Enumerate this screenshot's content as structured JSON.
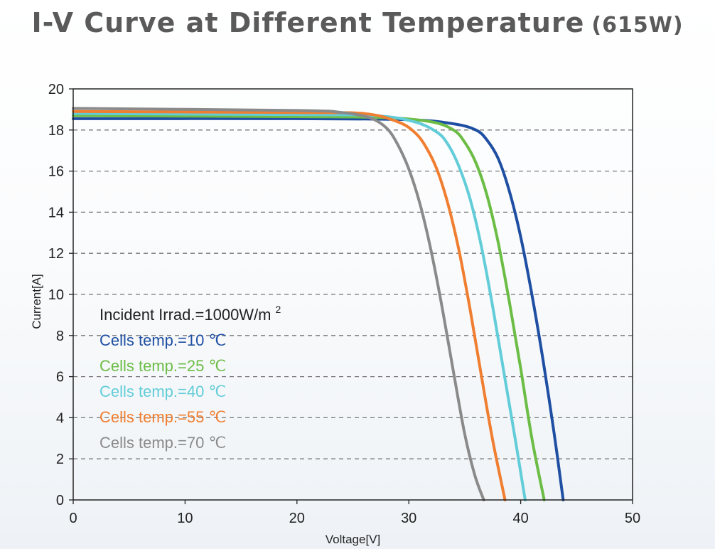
{
  "chart_data": {
    "type": "line",
    "title": "I-V Curve at Different Temperature",
    "title_suffix": "(615W)",
    "xlabel": "Voltage[V]",
    "ylabel": "Current[A]",
    "xlim": [
      0,
      50
    ],
    "ylim": [
      0,
      20
    ],
    "xticks": [
      "0",
      "10",
      "20",
      "30",
      "40",
      "50"
    ],
    "yticks": [
      "0",
      "2",
      "4",
      "6",
      "8",
      "10",
      "12",
      "14",
      "16",
      "18",
      "20"
    ],
    "grid": "horizontal dashed",
    "annotations": {
      "irradiance": "Incident Irrad.=1000W/m",
      "irradiance_sup": "2"
    },
    "series": [
      {
        "name": "Cells temp.=10 ℃",
        "color": "#1f4fa3",
        "x": [
          0,
          20,
          30,
          34,
          36,
          37,
          38,
          39,
          40,
          41,
          42,
          43,
          43.8
        ],
        "y": [
          18.55,
          18.55,
          18.5,
          18.3,
          18.0,
          17.5,
          16.6,
          15.0,
          12.8,
          10.0,
          6.8,
          3.2,
          0
        ]
      },
      {
        "name": "Cells temp.=25 ℃",
        "color": "#6cbd45",
        "x": [
          0,
          20,
          28,
          32,
          34,
          35,
          36,
          37,
          38,
          39,
          40,
          41,
          42.1
        ],
        "y": [
          18.7,
          18.65,
          18.6,
          18.4,
          18.0,
          17.4,
          16.4,
          14.8,
          12.5,
          9.6,
          6.4,
          3.0,
          0
        ]
      },
      {
        "name": "Cells temp.=40 ℃",
        "color": "#62cdd8",
        "x": [
          0,
          20,
          27,
          30.5,
          32.5,
          33.5,
          34.5,
          35.5,
          36.5,
          37.5,
          38.5,
          39.5,
          40.4
        ],
        "y": [
          18.8,
          18.75,
          18.7,
          18.4,
          17.9,
          17.3,
          16.2,
          14.6,
          12.3,
          9.4,
          6.2,
          3.0,
          0
        ]
      },
      {
        "name": "Cells temp.=55 ℃",
        "color": "#f07e30",
        "x": [
          0,
          20,
          26,
          29,
          30.5,
          31.5,
          32.5,
          33.5,
          34.5,
          35.5,
          36.5,
          37.5,
          38.6
        ],
        "y": [
          18.9,
          18.85,
          18.8,
          18.4,
          17.9,
          17.2,
          16.1,
          14.4,
          12.1,
          9.2,
          6.0,
          2.9,
          0
        ]
      },
      {
        "name": "Cells temp.=70 ℃",
        "color": "#8a8a8a",
        "x": [
          0,
          20,
          24,
          26.5,
          28,
          29,
          30,
          31,
          32,
          33,
          34,
          35,
          35.9,
          36.7
        ],
        "y": [
          19.05,
          18.95,
          18.85,
          18.6,
          18.1,
          17.3,
          16.1,
          14.4,
          12.1,
          9.3,
          6.2,
          3.2,
          1.2,
          0
        ]
      }
    ]
  }
}
